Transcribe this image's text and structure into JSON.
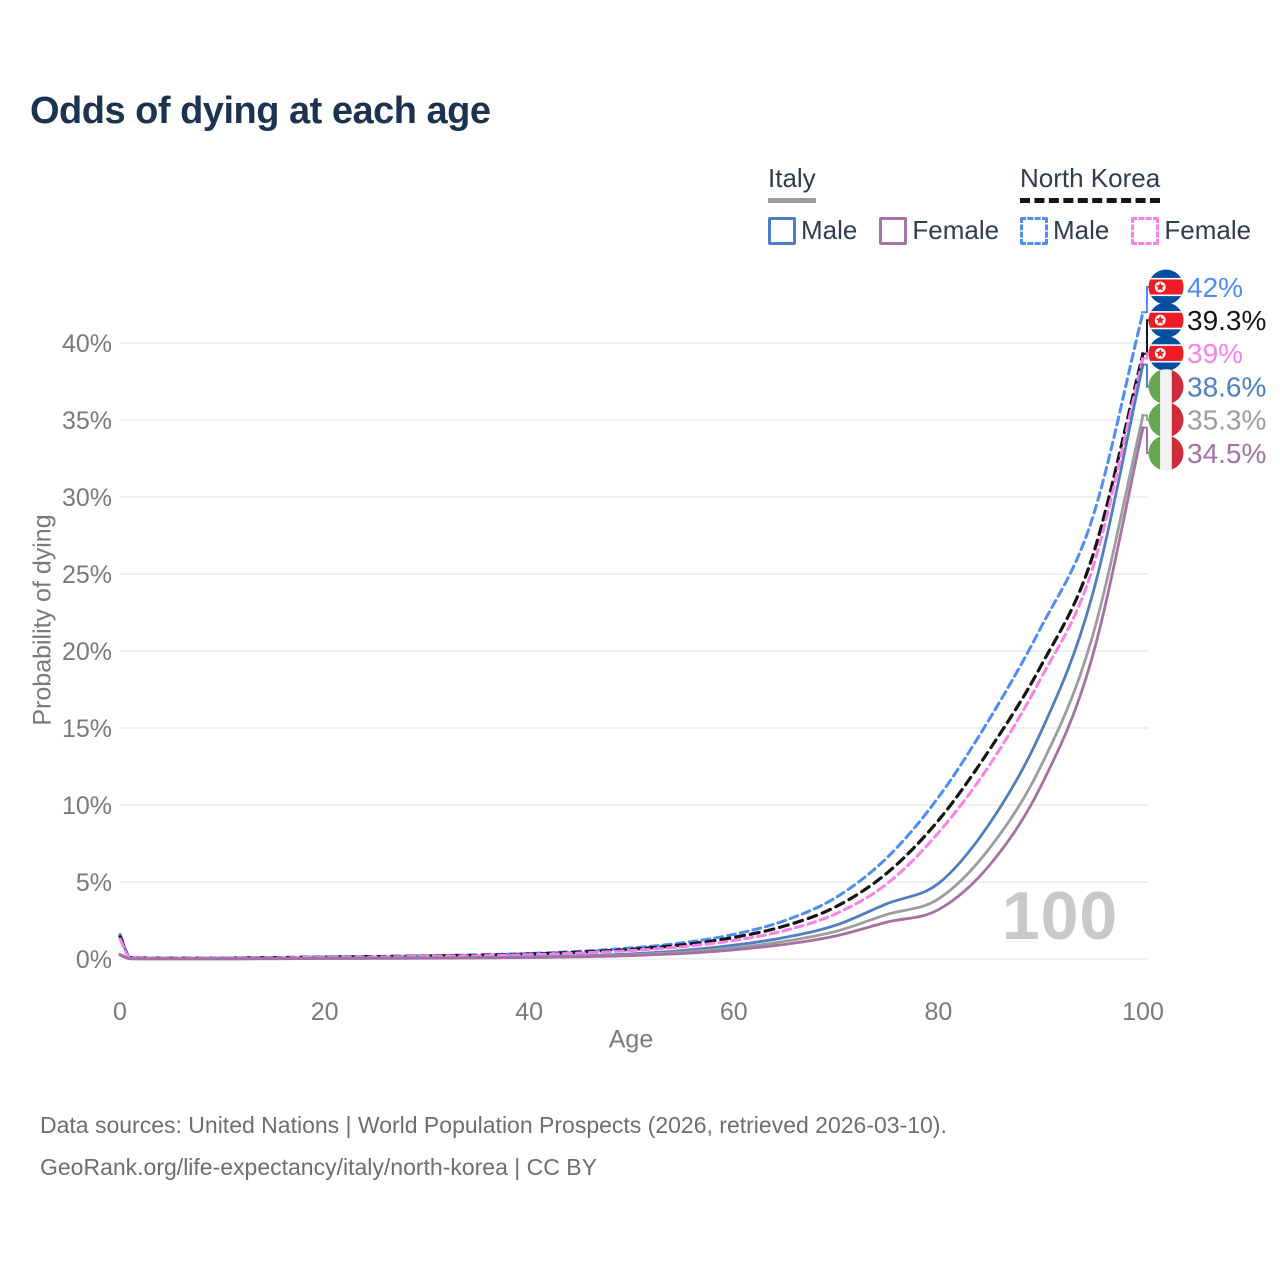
{
  "title": "Odds of dying at each age",
  "legend": {
    "groups": [
      {
        "label": "Italy",
        "line_style": "solid",
        "underline_color": "#9d9d9d",
        "items": [
          {
            "label": "Male",
            "color": "#4e7fc0"
          },
          {
            "label": "Female",
            "color": "#a873a8"
          }
        ]
      },
      {
        "label": "North Korea",
        "line_style": "dashed",
        "underline_color": "#151515",
        "items": [
          {
            "label": "Male",
            "color": "#4f8df6"
          },
          {
            "label": "Female",
            "color": "#fb80ea"
          }
        ]
      }
    ]
  },
  "watermark_age": "100",
  "footer": {
    "line1": "Data sources: United Nations | World Population Prospects (2026, retrieved 2026-03-10).",
    "line2": "GeoRank.org/life-expectancy/italy/north-korea | CC BY"
  },
  "chart_data": {
    "type": "line",
    "title": "Odds of dying at each age",
    "xlabel": "Age",
    "ylabel": "Probability of dying",
    "xlim": [
      0,
      100
    ],
    "ylim_percent": [
      0,
      43
    ],
    "x_ticks": [
      0,
      20,
      40,
      60,
      80,
      100
    ],
    "y_ticks_percent": [
      0,
      5,
      10,
      15,
      20,
      25,
      30,
      35,
      40
    ],
    "grid": true,
    "legend_position": "top-right",
    "x": [
      0,
      1,
      5,
      10,
      15,
      20,
      25,
      30,
      35,
      40,
      45,
      50,
      55,
      60,
      65,
      70,
      75,
      80,
      85,
      90,
      95,
      100
    ],
    "series": [
      {
        "name": "North Korea Male",
        "flag": "north-korea",
        "color": "#4f8df6",
        "dash": "8 5",
        "width": 3,
        "end_label": "42%",
        "values": [
          1.6,
          0.1,
          0.06,
          0.07,
          0.1,
          0.14,
          0.17,
          0.21,
          0.27,
          0.36,
          0.5,
          0.72,
          1.05,
          1.6,
          2.5,
          4.0,
          6.6,
          10.5,
          15.6,
          21.5,
          28.5,
          42.0
        ]
      },
      {
        "name": "North Korea Both sexes",
        "flag": "north-korea",
        "color": "#151515",
        "dash": "9 6",
        "width": 3.2,
        "end_label": "39.3%",
        "values": [
          1.45,
          0.09,
          0.05,
          0.06,
          0.09,
          0.12,
          0.15,
          0.19,
          0.24,
          0.32,
          0.44,
          0.63,
          0.92,
          1.4,
          2.15,
          3.4,
          5.6,
          9.0,
          13.6,
          19.0,
          26.0,
          39.3
        ]
      },
      {
        "name": "North Korea Female",
        "flag": "north-korea",
        "color": "#fb80ea",
        "dash": "8 5",
        "width": 3,
        "end_label": "39%",
        "values": [
          1.3,
          0.08,
          0.05,
          0.06,
          0.08,
          0.11,
          0.13,
          0.17,
          0.21,
          0.28,
          0.39,
          0.55,
          0.8,
          1.2,
          1.85,
          2.95,
          4.9,
          8.2,
          12.6,
          18.2,
          25.2,
          39.0
        ]
      },
      {
        "name": "Italy Male",
        "flag": "italy",
        "color": "#4e7fc0",
        "dash": null,
        "width": 2.8,
        "end_label": "38.6%",
        "values": [
          0.3,
          0.02,
          0.01,
          0.01,
          0.03,
          0.05,
          0.06,
          0.07,
          0.09,
          0.13,
          0.2,
          0.33,
          0.55,
          0.9,
          1.4,
          2.2,
          3.6,
          4.9,
          8.8,
          14.7,
          23.5,
          38.6
        ]
      },
      {
        "name": "Italy Both sexes",
        "flag": "italy",
        "color": "#9d9d9d",
        "dash": null,
        "width": 2.8,
        "end_label": "35.3%",
        "values": [
          0.27,
          0.02,
          0.01,
          0.01,
          0.02,
          0.04,
          0.05,
          0.06,
          0.08,
          0.11,
          0.17,
          0.27,
          0.45,
          0.72,
          1.15,
          1.8,
          2.9,
          3.9,
          7.2,
          12.5,
          20.8,
          35.3
        ]
      },
      {
        "name": "Italy Female",
        "flag": "italy",
        "color": "#a571a5",
        "dash": null,
        "width": 2.8,
        "end_label": "34.5%",
        "values": [
          0.25,
          0.02,
          0.01,
          0.01,
          0.02,
          0.03,
          0.04,
          0.05,
          0.07,
          0.09,
          0.14,
          0.22,
          0.36,
          0.6,
          0.95,
          1.5,
          2.4,
          3.2,
          6.1,
          11.2,
          19.5,
          34.5
        ]
      }
    ],
    "flag_colors": {
      "nk_blue": "#024FA2",
      "nk_red": "#ED1C27",
      "nk_white": "#ffffff",
      "it_green": "#67a550",
      "it_white": "#f2f2f2",
      "it_red": "#cf2b3a"
    },
    "grid_color": "#ececec",
    "tick_color": "#7a7a7a"
  }
}
